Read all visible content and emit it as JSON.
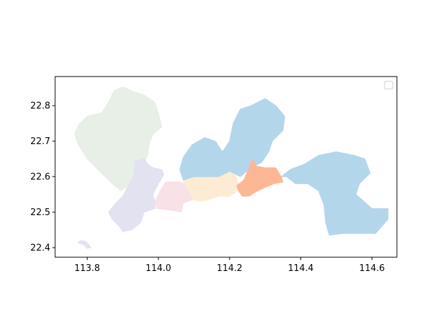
{
  "chart_data": {
    "type": "map",
    "title": "",
    "xlabel": "",
    "ylabel": "",
    "xlim": [
      113.71,
      114.67
    ],
    "ylim": [
      22.373,
      22.882
    ],
    "x_ticks": [
      {
        "value": 113.8,
        "label": "113.8"
      },
      {
        "value": 114.0,
        "label": "114.0"
      },
      {
        "value": 114.2,
        "label": "114.2"
      },
      {
        "value": 114.4,
        "label": "114.4"
      },
      {
        "value": 114.6,
        "label": "114.6"
      }
    ],
    "y_ticks": [
      {
        "value": 22.4,
        "label": "22.4"
      },
      {
        "value": 22.5,
        "label": "22.5"
      },
      {
        "value": 22.6,
        "label": "22.6"
      },
      {
        "value": 22.7,
        "label": "22.7"
      },
      {
        "value": 22.8,
        "label": "22.8"
      }
    ],
    "legend": {
      "placement": "upper right",
      "entries": []
    },
    "regions": [
      {
        "id": "northwest",
        "color": "#e8efe6",
        "outline": [
          [
            113.875,
            22.842
          ],
          [
            113.9,
            22.853
          ],
          [
            113.93,
            22.84
          ],
          [
            113.96,
            22.83
          ],
          [
            113.99,
            22.81
          ],
          [
            114.0,
            22.78
          ],
          [
            114.01,
            22.74
          ],
          [
            113.985,
            22.72
          ],
          [
            113.975,
            22.695
          ],
          [
            113.97,
            22.66
          ],
          [
            113.96,
            22.64
          ],
          [
            113.945,
            22.63
          ],
          [
            113.93,
            22.6
          ],
          [
            113.915,
            22.575
          ],
          [
            113.895,
            22.56
          ],
          [
            113.87,
            22.58
          ],
          [
            113.84,
            22.61
          ],
          [
            113.8,
            22.65
          ],
          [
            113.775,
            22.69
          ],
          [
            113.765,
            22.72
          ],
          [
            113.775,
            22.745
          ],
          [
            113.8,
            22.77
          ],
          [
            113.84,
            22.78
          ],
          [
            113.86,
            22.81
          ]
        ]
      },
      {
        "id": "southwest",
        "color": "#e2e2f1",
        "outline": [
          [
            113.935,
            22.645
          ],
          [
            113.96,
            22.65
          ],
          [
            113.97,
            22.635
          ],
          [
            113.985,
            22.625
          ],
          [
            114.01,
            22.62
          ],
          [
            114.015,
            22.605
          ],
          [
            114.0,
            22.58
          ],
          [
            113.985,
            22.55
          ],
          [
            113.99,
            22.53
          ],
          [
            113.99,
            22.51
          ],
          [
            113.96,
            22.5
          ],
          [
            113.95,
            22.47
          ],
          [
            113.925,
            22.45
          ],
          [
            113.9,
            22.445
          ],
          [
            113.89,
            22.46
          ],
          [
            113.87,
            22.48
          ],
          [
            113.86,
            22.5
          ],
          [
            113.88,
            22.525
          ],
          [
            113.9,
            22.545
          ],
          [
            113.915,
            22.575
          ],
          [
            113.93,
            22.6
          ]
        ]
      },
      {
        "id": "southwest-islet",
        "color": "#e2e2f1",
        "outline": [
          [
            113.78,
            22.42
          ],
          [
            113.795,
            22.418
          ],
          [
            113.805,
            22.408
          ],
          [
            113.81,
            22.4
          ],
          [
            113.8,
            22.398
          ],
          [
            113.79,
            22.408
          ],
          [
            113.775,
            22.413
          ]
        ]
      },
      {
        "id": "central-south",
        "color": "#f8e1e7",
        "outline": [
          [
            114.02,
            22.585
          ],
          [
            114.055,
            22.585
          ],
          [
            114.085,
            22.58
          ],
          [
            114.1,
            22.56
          ],
          [
            114.095,
            22.535
          ],
          [
            114.07,
            22.525
          ],
          [
            114.065,
            22.5
          ],
          [
            114.04,
            22.505
          ],
          [
            113.995,
            22.51
          ],
          [
            113.99,
            22.53
          ],
          [
            114.005,
            22.56
          ]
        ]
      },
      {
        "id": "central-east",
        "color": "#fdebd3",
        "outline": [
          [
            114.07,
            22.59
          ],
          [
            114.1,
            22.6
          ],
          [
            114.14,
            22.6
          ],
          [
            114.17,
            22.6
          ],
          [
            114.2,
            22.615
          ],
          [
            114.22,
            22.6
          ],
          [
            114.225,
            22.575
          ],
          [
            114.215,
            22.555
          ],
          [
            114.2,
            22.545
          ],
          [
            114.17,
            22.545
          ],
          [
            114.14,
            22.535
          ],
          [
            114.12,
            22.53
          ],
          [
            114.1,
            22.535
          ],
          [
            114.085,
            22.56
          ]
        ]
      },
      {
        "id": "north",
        "color": "#b4d6eb",
        "outline": [
          [
            114.06,
            22.62
          ],
          [
            114.07,
            22.655
          ],
          [
            114.095,
            22.69
          ],
          [
            114.13,
            22.71
          ],
          [
            114.16,
            22.7
          ],
          [
            114.18,
            22.67
          ],
          [
            114.2,
            22.7
          ],
          [
            114.21,
            22.75
          ],
          [
            114.23,
            22.79
          ],
          [
            114.26,
            22.8
          ],
          [
            114.3,
            22.82
          ],
          [
            114.33,
            22.8
          ],
          [
            114.355,
            22.77
          ],
          [
            114.35,
            22.73
          ],
          [
            114.32,
            22.7
          ],
          [
            114.31,
            22.67
          ],
          [
            114.29,
            22.64
          ],
          [
            114.26,
            22.625
          ],
          [
            114.23,
            22.6
          ],
          [
            114.2,
            22.615
          ],
          [
            114.17,
            22.6
          ],
          [
            114.14,
            22.6
          ],
          [
            114.1,
            22.6
          ],
          [
            114.07,
            22.59
          ]
        ]
      },
      {
        "id": "east",
        "color": "#b4d6eb",
        "outline": [
          [
            114.345,
            22.6
          ],
          [
            114.37,
            22.62
          ],
          [
            114.41,
            22.635
          ],
          [
            114.45,
            22.66
          ],
          [
            114.5,
            22.67
          ],
          [
            114.55,
            22.66
          ],
          [
            114.58,
            22.65
          ],
          [
            114.595,
            22.61
          ],
          [
            114.565,
            22.58
          ],
          [
            114.555,
            22.55
          ],
          [
            114.6,
            22.51
          ],
          [
            114.645,
            22.51
          ],
          [
            114.645,
            22.48
          ],
          [
            114.61,
            22.44
          ],
          [
            114.56,
            22.44
          ],
          [
            114.52,
            22.44
          ],
          [
            114.48,
            22.435
          ],
          [
            114.47,
            22.47
          ],
          [
            114.465,
            22.52
          ],
          [
            114.45,
            22.56
          ],
          [
            114.42,
            22.58
          ],
          [
            114.385,
            22.58
          ],
          [
            114.36,
            22.6
          ]
        ]
      },
      {
        "id": "southeast-coast",
        "color": "#fcb895",
        "outline": [
          [
            114.24,
            22.59
          ],
          [
            114.265,
            22.65
          ],
          [
            114.275,
            22.63
          ],
          [
            114.3,
            22.625
          ],
          [
            114.33,
            22.625
          ],
          [
            114.345,
            22.6
          ],
          [
            114.35,
            22.585
          ],
          [
            114.325,
            22.58
          ],
          [
            114.3,
            22.57
          ],
          [
            114.27,
            22.555
          ],
          [
            114.255,
            22.545
          ],
          [
            114.235,
            22.545
          ],
          [
            114.225,
            22.56
          ],
          [
            114.22,
            22.575
          ]
        ]
      }
    ]
  }
}
